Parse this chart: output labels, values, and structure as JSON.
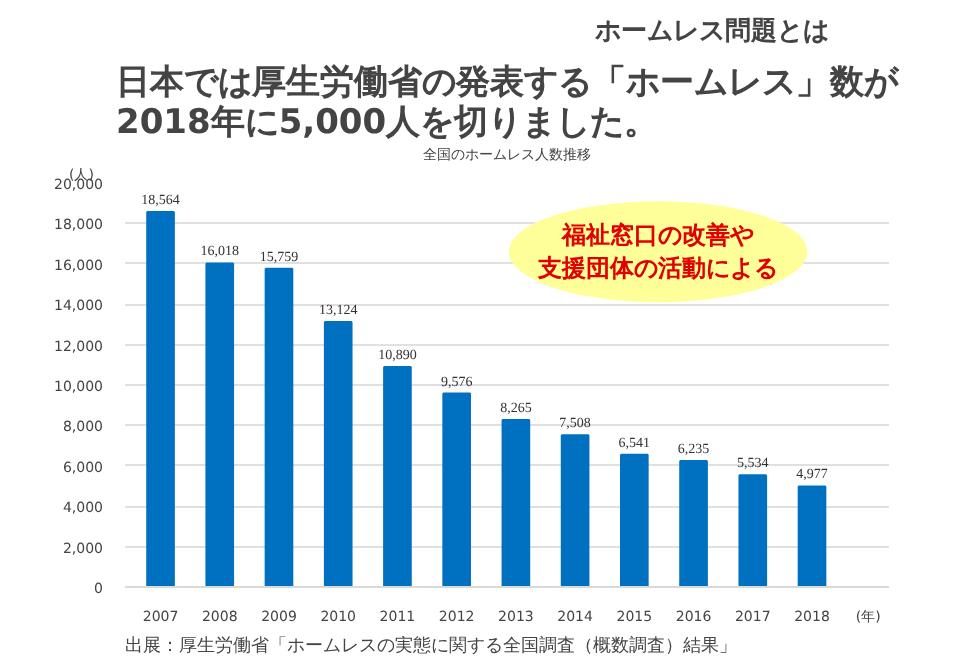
{
  "chart_data": {
    "type": "bar",
    "title": "日本では厚生労働省の発表する「ホームレス」数が\n2018年に5,000人を切りました。",
    "subtitle": "全国のホームレス人数推移",
    "ylabel": "(人)",
    "xlabel": "(年)",
    "categories": [
      "2007",
      "2008",
      "2009",
      "2010",
      "2011",
      "2012",
      "2013",
      "2014",
      "2015",
      "2016",
      "2017",
      "2018"
    ],
    "values": [
      18564,
      16018,
      15759,
      13124,
      10890,
      9576,
      8265,
      7508,
      6541,
      6235,
      5534,
      4977
    ],
    "value_labels": [
      "18,564",
      "16,018",
      "15,759",
      "13,124",
      "10,890",
      "9,576",
      "8,265",
      "7,508",
      "6,541",
      "6,235",
      "5,534",
      "4,977"
    ],
    "color": "#0070c0",
    "grid": "y",
    "ylim": [
      0,
      20000
    ],
    "yticks": [
      0,
      {
        "value": 2000,
        "label": "2,000"
      },
      {
        "value": 4000,
        "label": "4,000"
      },
      {
        "value": 6000,
        "label": "6,000"
      },
      {
        "value": 8000,
        "label": "8,000"
      },
      {
        "value": 10000,
        "label": "10,000"
      },
      {
        "value": 12000,
        "label": "12,000"
      },
      {
        "value": 14000,
        "label": "14,000"
      },
      {
        "value": 16000,
        "label": "16,000"
      },
      {
        "value": 18000,
        "label": "18,000"
      },
      {
        "value": 20000,
        "label": "20,000"
      }
    ],
    "annotations": [
      "ホームレス問題とは",
      "福祉窓口の改善や支援団体の活動による",
      "出展：厚生労働省「ホームレスの実態に関する全国調査（概数調査）結果」"
    ]
  }
}
